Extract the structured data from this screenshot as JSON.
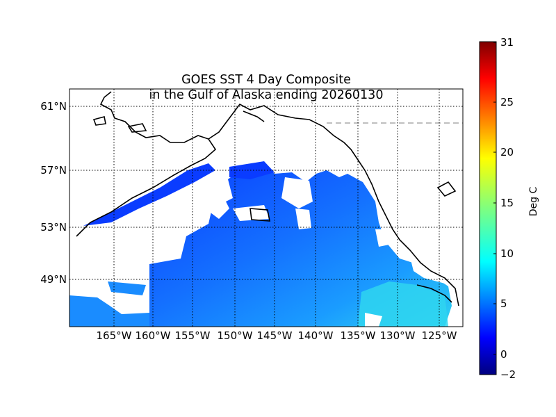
{
  "title_line1": "GOES SST 4 Day Composite",
  "title_line2": "in the Gulf of Alaska ending 20260130",
  "lat_labels": [
    "61°N",
    "57°N",
    "53°N",
    "49°N"
  ],
  "lon_labels": [
    "165°W",
    "160°W",
    "155°W",
    "150°W",
    "145°W",
    "140°W",
    "135°W",
    "130°W",
    "125°W"
  ],
  "colorbar": {
    "label": "Deg C",
    "ticks": [
      "31",
      "25",
      "20",
      "15",
      "10",
      "5",
      "0",
      "−2"
    ],
    "min": -2,
    "max": 31,
    "colormap": "jet"
  },
  "colors": {
    "cold_sst": "#0a3cff",
    "mid_sst": "#1680ff",
    "warm_sst": "#2fd5f0",
    "land_coast": "#000000",
    "grid": "#000000",
    "no_data": "#ffffff"
  },
  "grid": "dotted"
}
